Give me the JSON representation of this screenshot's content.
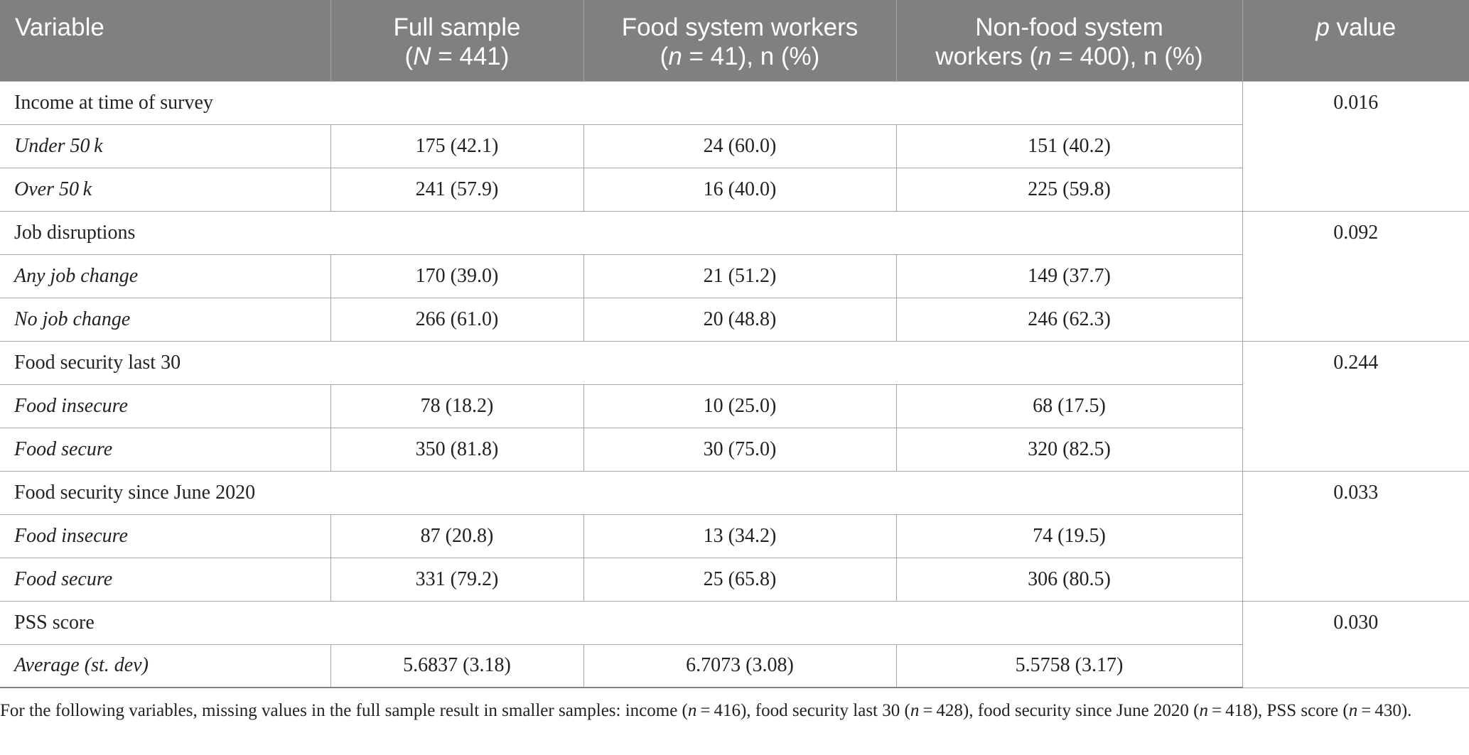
{
  "header": {
    "variable": "Variable",
    "full_sample": {
      "line1": "Full sample",
      "n_label": "N",
      "n_rest": " = 441)"
    },
    "food": {
      "line1": "Food system workers",
      "n_label": "n",
      "n_rest": " = 41), n (%)"
    },
    "nonfood": {
      "line1": "Non-food system",
      "pre": "workers (",
      "n_label": "n",
      "n_rest": " = 400), n (%)"
    },
    "pvalue": {
      "p": "p",
      "rest": " value"
    }
  },
  "groups": [
    {
      "label": "Income at time of survey",
      "p": "0.016",
      "rows": [
        {
          "label": "Under 50 k",
          "full": "175 (42.1)",
          "food": "24 (60.0)",
          "nonfood": "151 (40.2)"
        },
        {
          "label": "Over 50 k",
          "full": "241 (57.9)",
          "food": "16 (40.0)",
          "nonfood": "225 (59.8)"
        }
      ]
    },
    {
      "label": "Job disruptions",
      "p": "0.092",
      "rows": [
        {
          "label": "Any job change",
          "full": "170 (39.0)",
          "food": "21 (51.2)",
          "nonfood": "149 (37.7)"
        },
        {
          "label": "No job change",
          "full": "266 (61.0)",
          "food": "20 (48.8)",
          "nonfood": "246 (62.3)"
        }
      ]
    },
    {
      "label": "Food security last 30",
      "p": "0.244",
      "rows": [
        {
          "label": "Food insecure",
          "full": "78 (18.2)",
          "food": "10 (25.0)",
          "nonfood": "68 (17.5)"
        },
        {
          "label": "Food secure",
          "full": "350 (81.8)",
          "food": "30 (75.0)",
          "nonfood": "320 (82.5)"
        }
      ]
    },
    {
      "label": "Food security since June 2020",
      "p": "0.033",
      "rows": [
        {
          "label": "Food insecure",
          "full": "87 (20.8)",
          "food": "13 (34.2)",
          "nonfood": "74 (19.5)"
        },
        {
          "label": "Food secure",
          "full": "331 (79.2)",
          "food": "25 (65.8)",
          "nonfood": "306 (80.5)"
        }
      ]
    },
    {
      "label": "PSS score",
      "p": "0.030",
      "rows": [
        {
          "label": "Average (st. dev)",
          "full": "5.6837 (3.18)",
          "food": "6.7073 (3.08)",
          "nonfood": "5.5758 (3.17)"
        }
      ]
    }
  ],
  "footnote": {
    "segments": [
      {
        "t": "For the following variables, missing values in the full sample result in smaller samples: income ("
      },
      {
        "t": "n",
        "i": true
      },
      {
        "t": " = 416), food security last 30 ("
      },
      {
        "t": "n",
        "i": true
      },
      {
        "t": " = 428), food security since June 2020 ("
      },
      {
        "t": "n",
        "i": true
      },
      {
        "t": " = 418), PSS score ("
      },
      {
        "t": "n",
        "i": true
      },
      {
        "t": " = 430)."
      }
    ]
  }
}
